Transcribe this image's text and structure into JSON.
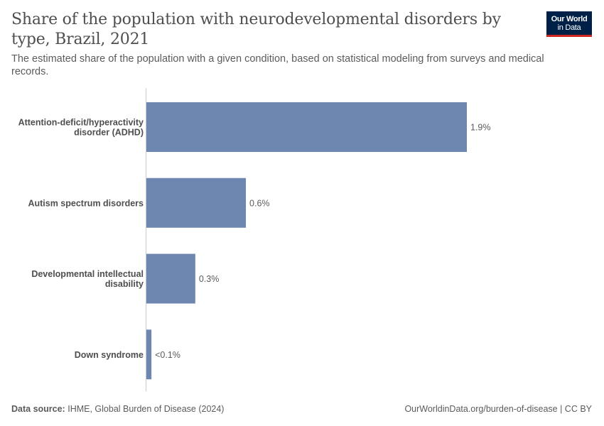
{
  "header": {
    "title": "Share of the population with neurodevelopmental disorders by type, Brazil, 2021",
    "subtitle": "The estimated share of the population with a given condition, based on statistical modeling from surveys and medical records.",
    "logo_line1": "Our World",
    "logo_line2": "in Data"
  },
  "footer": {
    "source_label": "Data source:",
    "source_text": "IHME, Global Burden of Disease (2024)",
    "url_text": "OurWorldinData.org/burden-of-disease | CC BY"
  },
  "colors": {
    "bar": "#6d87b0",
    "axis": "#cccccc",
    "logo_bg": "#002147",
    "logo_accent": "#ce261e"
  },
  "chart_data": {
    "type": "bar",
    "orientation": "horizontal",
    "categories": [
      [
        "Attention-deficit/hyperactivity",
        "disorder (ADHD)"
      ],
      [
        "Autism spectrum disorders"
      ],
      [
        "Developmental intellectual",
        "disability"
      ],
      [
        "Down syndrome"
      ]
    ],
    "values": [
      1.9,
      0.59,
      0.29,
      0.03
    ],
    "value_labels": [
      "1.9%",
      "0.6%",
      "0.3%",
      "<0.1%"
    ],
    "unit": "%",
    "xlim": [
      0,
      1.9
    ],
    "grid": false
  }
}
